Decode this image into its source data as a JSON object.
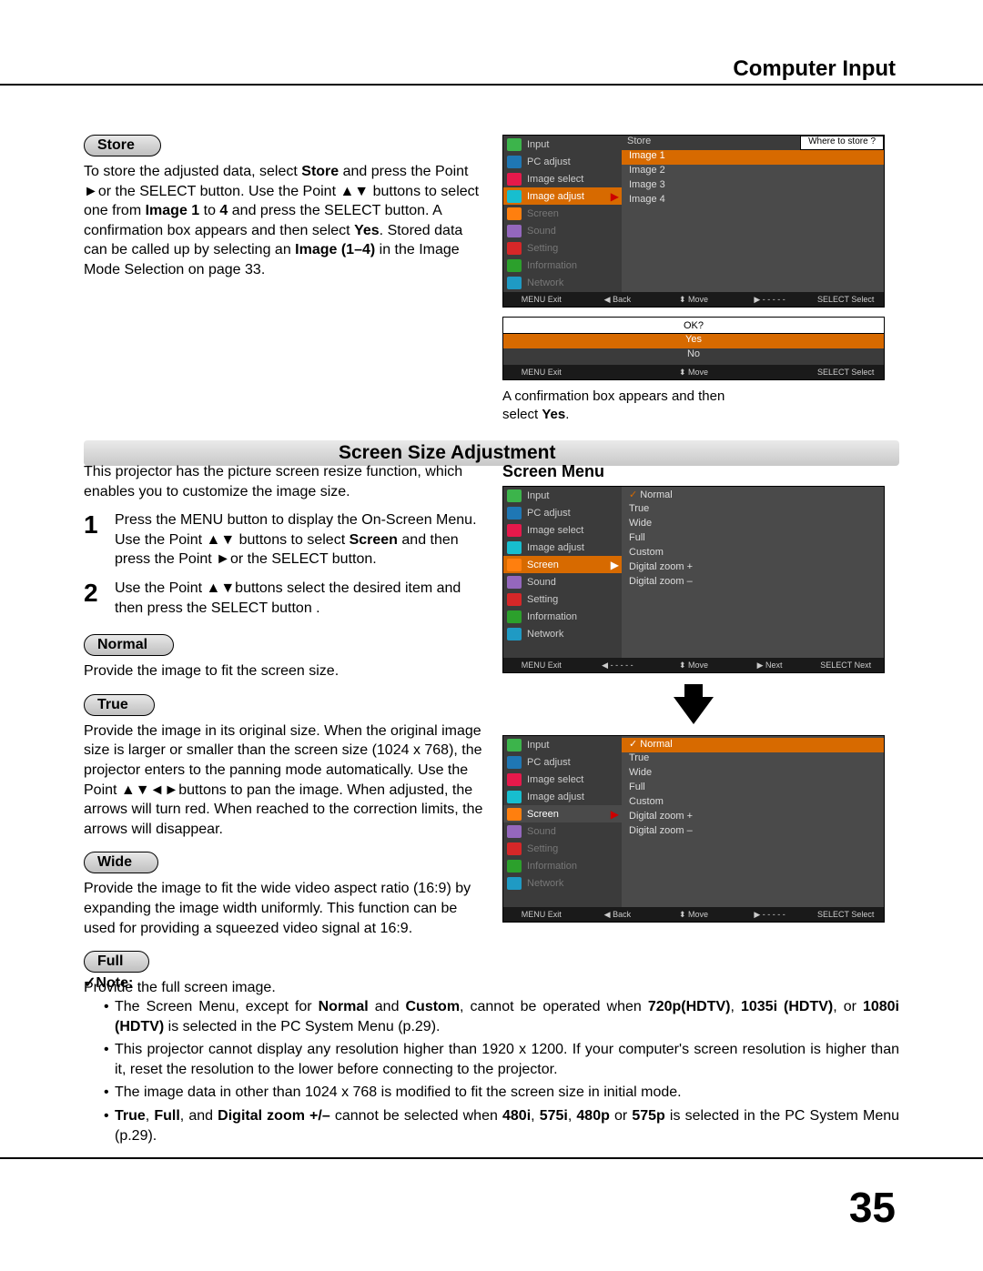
{
  "header": {
    "title": "Computer Input"
  },
  "page_number": "35",
  "store": {
    "pill": "Store",
    "text": "To store the adjusted data, select Store and press the Point ►or the SELECT button. Use the Point ▲▼ buttons to select one from Image 1 to 4 and press the SELECT button. A confirmation box appears and then select Yes. Stored data can be called up by selecting an Image (1–4) in the Image Mode Selection on page 33."
  },
  "section_title": "Screen Size Adjustment",
  "intro": "This projector has the picture screen resize function, which enables you to customize the image size.",
  "steps": [
    {
      "n": "1",
      "t": "Press the MENU button to display the On-Screen Menu. Use the Point ▲▼ buttons to select Screen and then press the Point ►or the SELECT button."
    },
    {
      "n": "2",
      "t": "Use the Point ▲▼buttons select the desired item and then press the SELECT button ."
    }
  ],
  "modes": {
    "normal": {
      "pill": "Normal",
      "text": "Provide the image to fit the screen size."
    },
    "true": {
      "pill": "True",
      "text": "Provide the image in its original size. When the original image size is larger or smaller than the screen size (1024 x  768), the projector enters to the panning  mode automatically. Use the Point ▲▼◄►buttons to pan the image. When adjusted, the arrows will turn red. When reached to the correction limits, the arrows will disappear."
    },
    "wide": {
      "pill": "Wide",
      "text": "Provide the image to fit the wide video aspect ratio (16:9) by expanding the image width uniformly. This function can be used for providing a squeezed video signal at 16:9."
    },
    "full": {
      "pill": "Full",
      "text": "Provide the full screen image."
    }
  },
  "note": {
    "heading": "✓Note:",
    "items": [
      "The Screen Menu, except for Normal and Custom, cannot be operated when 720p(HDTV), 1035i (HDTV), or 1080i (HDTV)  is selected in the PC System Menu (p.29).",
      "This projector cannot display any resolution higher than 1920 x 1200. If your computer's screen resolution is higher than it, reset the resolution to the lower before connecting to the projector.",
      "The image data in other than 1024 x 768 is modified to fit the screen size in initial mode.",
      "True, Full, and Digital zoom +/– cannot be selected when 480i, 575i, 480p or 575p is selected in the PC System Menu (p.29)."
    ]
  },
  "osd": {
    "sidebar": [
      "Input",
      "PC adjust",
      "Image select",
      "Image adjust",
      "Screen",
      "Sound",
      "Setting",
      "Information",
      "Network"
    ],
    "icon_colors": [
      "#3cb44b",
      "#1f77b4",
      "#e6194b",
      "#17becf",
      "#ff7f0e",
      "#9467bd",
      "#d62728",
      "#2ca02c",
      "#1f9ac4"
    ],
    "store_top": "Store",
    "where": "Where to store ?",
    "images": [
      "Image 1",
      "Image 2",
      "Image 3",
      "Image 4"
    ],
    "ok": "OK?",
    "yes": "Yes",
    "no": "No",
    "confirm_caption": "A confirmation box appears and then select Yes.",
    "screen_menu_label": "Screen Menu",
    "screen_opts": [
      "Normal",
      "True",
      "Wide",
      "Full",
      "Custom",
      "Digital zoom +",
      "Digital zoom –"
    ],
    "bottom_hints": {
      "exit": "MENU Exit",
      "back": "◀ Back",
      "move": "⬍ Move",
      "next": "▶ - - - - -",
      "select": "SELECT Select",
      "next2": "▶ Next",
      "selnext": "SELECT Next"
    },
    "colors": {
      "bg": "#3b3b3b",
      "panel": "#4a4a4a",
      "sel": "#d76a00",
      "bot": "#1a1a1a"
    }
  }
}
